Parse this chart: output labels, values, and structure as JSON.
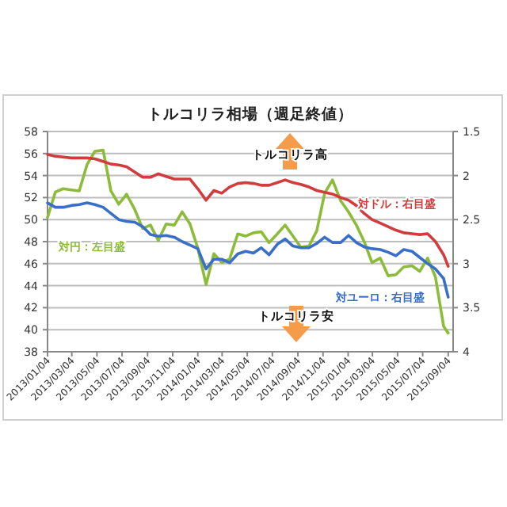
{
  "chart_data": {
    "type": "line",
    "title": "トルコリラ相場（週足終値）",
    "x": [
      "2013-01-04",
      "2013-01-23",
      "2013-02-11",
      "2013-03-03",
      "2013-03-22",
      "2013-04-10",
      "2013-04-29",
      "2013-05-19",
      "2013-06-07",
      "2013-06-26",
      "2013-07-15",
      "2013-08-04",
      "2013-08-23",
      "2013-09-11",
      "2013-09-30",
      "2013-10-19",
      "2013-11-08",
      "2013-11-27",
      "2013-12-16",
      "2014-01-04",
      "2014-01-24",
      "2014-02-12",
      "2014-03-03",
      "2014-03-22",
      "2014-04-11",
      "2014-04-30",
      "2014-05-19",
      "2014-06-07",
      "2014-06-26",
      "2014-07-16",
      "2014-08-04",
      "2014-08-23",
      "2014-09-11",
      "2014-10-01",
      "2014-10-20",
      "2014-11-08",
      "2014-11-27",
      "2014-12-17",
      "2015-01-05",
      "2015-01-24",
      "2015-02-12",
      "2015-03-03",
      "2015-03-23",
      "2015-04-11",
      "2015-04-30",
      "2015-05-19",
      "2015-06-08",
      "2015-06-27",
      "2015-07-16",
      "2015-08-04",
      "2015-08-24",
      "2015-09-04"
    ],
    "series": [
      {
        "name": "対円：左目盛",
        "color": "#8dbb3a",
        "axis": "y",
        "values": [
          50.2,
          52.5,
          52.8,
          52.7,
          52.6,
          55.0,
          56.2,
          56.3,
          52.6,
          51.4,
          52.3,
          50.9,
          49.2,
          49.5,
          48.1,
          49.6,
          49.5,
          50.7,
          49.6,
          47.4,
          44.1,
          46.9,
          46.1,
          46.4,
          48.7,
          48.5,
          48.8,
          48.9,
          47.9,
          48.7,
          49.5,
          48.5,
          47.5,
          47.6,
          49.0,
          52.4,
          53.6,
          51.7,
          50.7,
          49.5,
          48.0,
          46.1,
          46.5,
          44.9,
          45.0,
          45.7,
          45.8,
          45.3,
          46.5,
          44.8,
          40.3,
          39.7
        ]
      },
      {
        "name": "対ドル：右目盛",
        "color": "#d23c3c",
        "axis": "y2",
        "values": [
          1.76,
          1.78,
          1.79,
          1.8,
          1.8,
          1.8,
          1.81,
          1.84,
          1.87,
          1.88,
          1.9,
          1.96,
          2.02,
          2.02,
          1.98,
          2.01,
          2.04,
          2.04,
          2.04,
          2.15,
          2.28,
          2.17,
          2.2,
          2.13,
          2.09,
          2.08,
          2.09,
          2.11,
          2.11,
          2.08,
          2.05,
          2.08,
          2.1,
          2.13,
          2.17,
          2.19,
          2.21,
          2.25,
          2.28,
          2.34,
          2.43,
          2.5,
          2.54,
          2.58,
          2.62,
          2.65,
          2.66,
          2.67,
          2.66,
          2.75,
          2.9,
          3.03
        ]
      },
      {
        "name": "対ユーロ：右目盛",
        "color": "#3a6fc8",
        "axis": "y2",
        "values": [
          2.31,
          2.36,
          2.36,
          2.34,
          2.33,
          2.31,
          2.33,
          2.36,
          2.43,
          2.5,
          2.52,
          2.53,
          2.58,
          2.67,
          2.69,
          2.68,
          2.7,
          2.75,
          2.79,
          2.83,
          3.06,
          2.95,
          2.95,
          2.99,
          2.89,
          2.86,
          2.88,
          2.82,
          2.9,
          2.78,
          2.72,
          2.8,
          2.82,
          2.82,
          2.77,
          2.7,
          2.76,
          2.76,
          2.68,
          2.76,
          2.81,
          2.83,
          2.84,
          2.87,
          2.91,
          2.84,
          2.86,
          2.93,
          3.0,
          3.06,
          3.17,
          3.38
        ]
      }
    ],
    "xlim": [
      "2013-01-04",
      "2015-09-16"
    ],
    "xticks": [
      {
        "value": "2013-01-04",
        "label": "2013/01/04"
      },
      {
        "value": "2013-03-04",
        "label": "2013/03/04"
      },
      {
        "value": "2013-05-04",
        "label": "2013/05/04"
      },
      {
        "value": "2013-07-04",
        "label": "2013/07/04"
      },
      {
        "value": "2013-09-04",
        "label": "2013/09/04"
      },
      {
        "value": "2013-11-04",
        "label": "2013/11/04"
      },
      {
        "value": "2014-01-04",
        "label": "2014/01/04"
      },
      {
        "value": "2014-03-04",
        "label": "2014/03/04"
      },
      {
        "value": "2014-05-04",
        "label": "2014/05/04"
      },
      {
        "value": "2014-07-04",
        "label": "2014/07/04"
      },
      {
        "value": "2014-09-04",
        "label": "2014/09/04"
      },
      {
        "value": "2014-11-04",
        "label": "2014/11/04"
      },
      {
        "value": "2015-01-04",
        "label": "2015/01/04"
      },
      {
        "value": "2015-03-04",
        "label": "2015/03/04"
      },
      {
        "value": "2015-05-04",
        "label": "2015/05/04"
      },
      {
        "value": "2015-07-04",
        "label": "2015/07/04"
      },
      {
        "value": "2015-09-04",
        "label": "2015/09/04"
      }
    ],
    "ylim": [
      38,
      58
    ],
    "yticks": [
      38,
      40,
      42,
      44,
      46,
      48,
      50,
      52,
      54,
      56,
      58
    ],
    "y2lim": [
      4,
      1.5
    ],
    "y2ticks": [
      1.5,
      2,
      2.5,
      3,
      3.5,
      4
    ],
    "grid": "y",
    "marker": "none",
    "line_style": "solid",
    "annotations": [
      "トルコリラ高",
      "トルコリラ安"
    ]
  }
}
